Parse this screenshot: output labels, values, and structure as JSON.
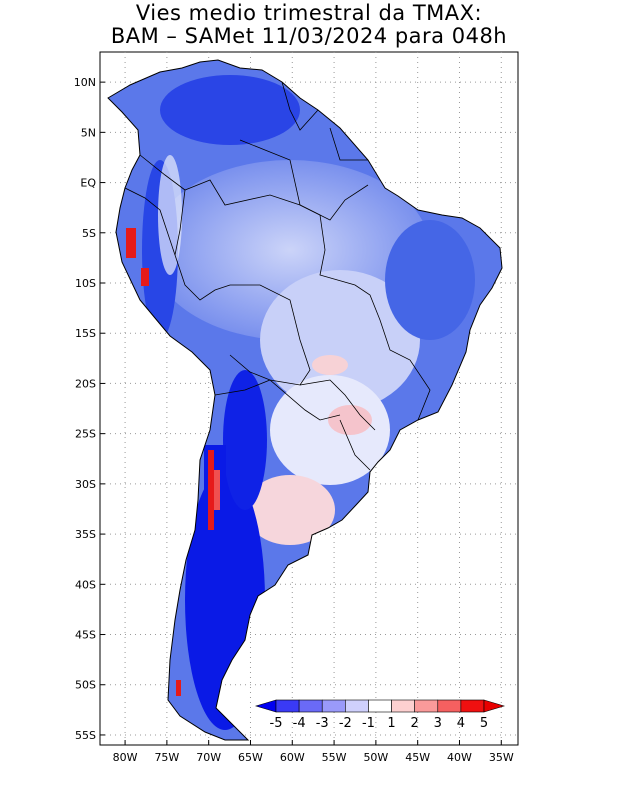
{
  "title": {
    "line1": "Vies medio trimestral da TMAX:",
    "line2": "BAM – SAMet 11/03/2024  para 048h"
  },
  "axes": {
    "lat_ticks": [
      "10N",
      "5N",
      "EQ",
      "5S",
      "10S",
      "15S",
      "20S",
      "25S",
      "30S",
      "35S",
      "40S",
      "45S",
      "50S",
      "55S"
    ],
    "lon_ticks": [
      "80W",
      "75W",
      "70W",
      "65W",
      "60W",
      "55W",
      "50W",
      "45W",
      "40W",
      "35W"
    ],
    "lat_range": [
      -56,
      13
    ],
    "lon_range": [
      -83,
      -33
    ],
    "grid": "dotted"
  },
  "colorbar": {
    "labels": [
      "-5",
      "-4",
      "-3",
      "-2",
      "-1",
      "1",
      "2",
      "3",
      "4",
      "5"
    ],
    "colors": [
      "#0000f0",
      "#3a3af5",
      "#6a6af7",
      "#9a9afa",
      "#cfd0fc",
      "#ffffff",
      "#fdd0d0",
      "#fa9a9a",
      "#f56060",
      "#f01010",
      "#e80000"
    ],
    "extend": "both",
    "placement": "bottom-right"
  },
  "field_colors": {
    "deep_negative": "#0a1ae6",
    "negative": "#4a6ae8",
    "weak_negative": "#aab8f5",
    "near_zero": "#e4e8fb",
    "positive": "#f7c8c8",
    "strong_positive": "#e41a1a"
  }
}
